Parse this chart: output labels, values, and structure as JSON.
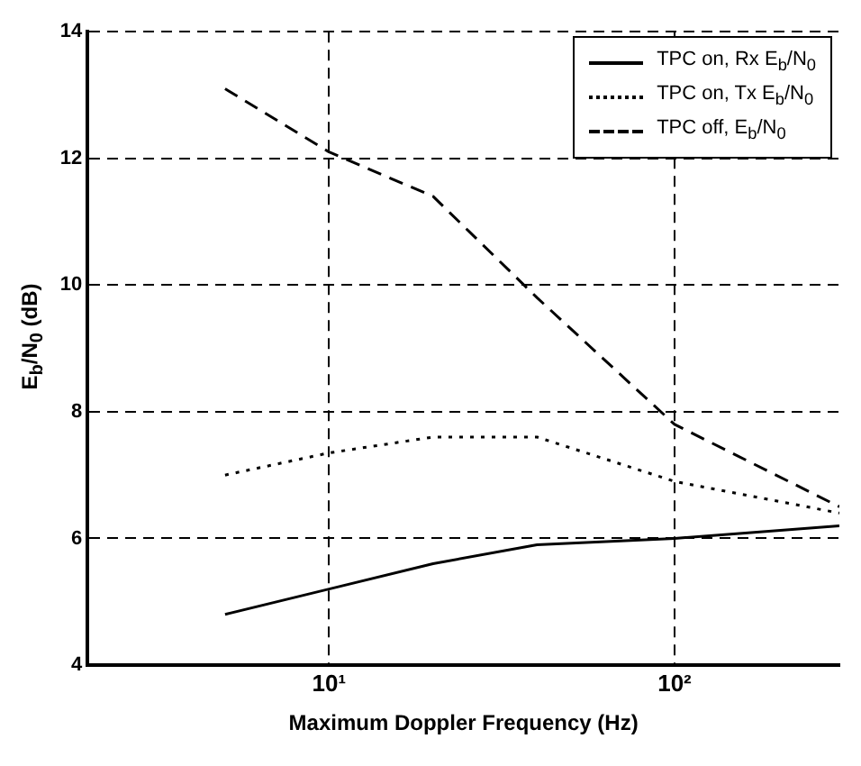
{
  "chart_data": {
    "type": "line",
    "xlabel": "Maximum Doppler Frequency (Hz)",
    "ylabel": "E$_{b}$/N$_{0}$ (dB)",
    "x": [
      5,
      10,
      20,
      40,
      100,
      300
    ],
    "series": [
      {
        "name": "TPC on, Rx E$_{b}$/N$_{0}$",
        "color": "#000000",
        "line_style": "solid",
        "values": [
          4.8,
          5.2,
          5.6,
          5.9,
          6.0,
          6.2
        ]
      },
      {
        "name": "TPC on, Tx E$_{b}$/N$_{0}$",
        "color": "#000000",
        "line_style": "dotted",
        "values": [
          7.0,
          7.35,
          7.6,
          7.6,
          6.9,
          6.4
        ]
      },
      {
        "name": "TPC off, E$_{b}$/N$_{0}$",
        "color": "#000000",
        "line_style": "dashed",
        "values": [
          13.1,
          12.1,
          11.4,
          9.8,
          7.8,
          6.5
        ]
      }
    ],
    "xlim": [
      2,
      300
    ],
    "xticks": [
      {
        "value": 10,
        "label": "10¹"
      },
      {
        "value": 100,
        "label": "10²"
      }
    ],
    "ylim": [
      4,
      14
    ],
    "yticks": [
      4,
      6,
      8,
      10,
      12,
      14
    ],
    "log": "x",
    "grid": true,
    "legend": "top right"
  }
}
